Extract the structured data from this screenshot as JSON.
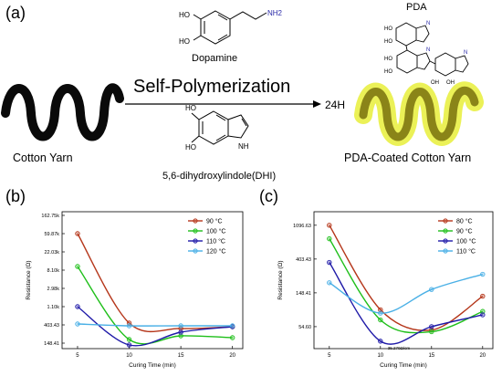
{
  "panels": {
    "a": "(a)",
    "b": "(b)",
    "c": "(c)"
  },
  "scheme": {
    "dopamine": {
      "name": "Dopamine",
      "ho1": "HO",
      "ho2": "HO",
      "nh2": "NH2"
    },
    "dhi": {
      "name": "5,6-dihydroxylindole(DHI)",
      "ho1": "HO",
      "ho2": "HO",
      "nh": "NH"
    },
    "pda": {
      "name": "PDA"
    },
    "arrow_label": "Self-Polymerization",
    "time": "24H",
    "cotton_yarn": "Cotton Yarn",
    "coated_yarn": "PDA-Coated Cotton Yarn"
  },
  "colors": {
    "yarn": "#0a0a0a",
    "coated_yarn": "#8a8418",
    "glow": "#e8ef3a"
  },
  "chart_data": [
    {
      "type": "line",
      "panel": "(b)",
      "xlabel": "Curing Time (min)",
      "ylabel": "Resistance (Ω)",
      "x": [
        5,
        10,
        15,
        20
      ],
      "xticks": [
        "5",
        "10",
        "15",
        "20"
      ],
      "yticks": [
        "148.41",
        "403.43",
        "1.10k",
        "2.98k",
        "8.10k",
        "22.03k",
        "59.87k",
        "162.75k"
      ],
      "yticks_log": [
        5,
        6,
        7,
        8,
        9,
        10,
        11,
        12
      ],
      "ylim_log": [
        4.7,
        12.2
      ],
      "xlim": [
        3.5,
        21
      ],
      "legend_position": "top-right",
      "series": [
        {
          "name": "90 °C",
          "color": "#b5361a",
          "values": [
            11.0,
            6.1,
            5.8,
            5.9
          ]
        },
        {
          "name": "100 °C",
          "color": "#1fbf1a",
          "values": [
            9.2,
            5.2,
            5.4,
            5.3
          ]
        },
        {
          "name": "110 °C",
          "color": "#1f1aa8",
          "values": [
            7.0,
            4.9,
            5.6,
            5.9
          ]
        },
        {
          "name": "120 °C",
          "color": "#4ab0e6",
          "values": [
            6.05,
            5.95,
            5.95,
            5.95
          ]
        }
      ]
    },
    {
      "type": "line",
      "panel": "(c)",
      "xlabel": "Curing Time (min)",
      "ylabel": "Resistance (Ω)",
      "x": [
        5,
        10,
        15,
        20
      ],
      "xticks": [
        "5",
        "10",
        "15",
        "20"
      ],
      "yticks": [
        "54.60",
        "148.41",
        "403.43",
        "1096.63"
      ],
      "yticks_log": [
        4,
        5,
        6,
        7
      ],
      "ylim_log": [
        3.35,
        7.4
      ],
      "xlim": [
        3.5,
        21
      ],
      "legend_position": "top-right",
      "annotation": {
        "text": "35.270Ω/cm",
        "x": 10,
        "y": 3.57
      },
      "series": [
        {
          "name": "80 °C",
          "color": "#b5361a",
          "values": [
            7.0,
            4.5,
            3.9,
            4.9
          ]
        },
        {
          "name": "90 °C",
          "color": "#1fbf1a",
          "values": [
            6.6,
            4.2,
            3.85,
            4.45
          ]
        },
        {
          "name": "100 °C",
          "color": "#1f1aa8",
          "values": [
            5.9,
            3.57,
            4.0,
            4.35
          ]
        },
        {
          "name": "110 °C",
          "color": "#4ab0e6",
          "values": [
            5.3,
            4.4,
            5.1,
            5.55
          ]
        }
      ]
    }
  ]
}
